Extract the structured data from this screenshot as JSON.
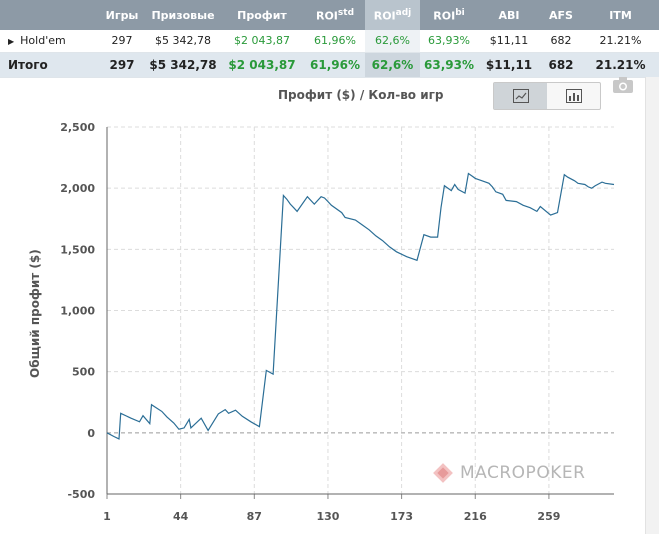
{
  "table": {
    "headers": [
      "",
      "Игры",
      "Призовые",
      "Профит",
      "ROI",
      "ROI",
      "ROI",
      "ABI",
      "AFS",
      "ITM"
    ],
    "header_sups": [
      "",
      "",
      "",
      "",
      "std",
      "adj",
      "bi",
      "",
      "",
      ""
    ],
    "rows": [
      {
        "name": "Hold'em",
        "games": "297",
        "prize": "$5 342,78",
        "profit": "$2 043,87",
        "roi_std": "61,96%",
        "roi_adj": "62,6%",
        "roi_bi": "63,93%",
        "abi": "$11,11",
        "afs": "682",
        "itm": "21.21%"
      }
    ],
    "total": {
      "name": "Итого",
      "games": "297",
      "prize": "$5 342,78",
      "profit": "$2 043,87",
      "roi_std": "61,96%",
      "roi_adj": "62,6%",
      "roi_bi": "63,93%",
      "abi": "$11,11",
      "afs": "682",
      "itm": "21.21%"
    }
  },
  "toggle": {
    "line_icon": "line-chart-icon",
    "bar_icon": "bar-chart-icon",
    "active": "line"
  },
  "camera_icon": "camera-icon",
  "watermark": "MACROPOKER",
  "colors": {
    "header_bg": "#8d9aa6",
    "line": "#2b6e96",
    "profit_green": "#2a9a3a"
  },
  "chart_data": {
    "type": "line",
    "title": "Профит ($) / Кол-во игр",
    "xlabel": "",
    "ylabel": "Общий профит ($)",
    "x_ticks": [
      1,
      44,
      87,
      130,
      173,
      216,
      259
    ],
    "y_ticks": [
      -500,
      0,
      500,
      1000,
      1500,
      2000,
      2500
    ],
    "y_tick_labels": [
      "-500",
      "0",
      "500",
      "1,000",
      "1,500",
      "2,000",
      "2,500"
    ],
    "xlim": [
      1,
      297
    ],
    "ylim": [
      -500,
      2500
    ],
    "grid": true,
    "series": [
      {
        "name": "",
        "x": [
          1,
          5,
          8,
          9,
          15,
          20,
          22,
          26,
          27,
          33,
          36,
          40,
          43,
          46,
          49,
          50,
          56,
          60,
          64,
          66,
          70,
          72,
          76,
          80,
          85,
          90,
          94,
          98,
          104,
          106,
          108,
          110,
          112,
          118,
          122,
          126,
          128,
          130,
          132,
          138,
          140,
          146,
          150,
          154,
          158,
          162,
          166,
          170,
          176,
          182,
          186,
          190,
          194,
          196,
          198,
          202,
          204,
          206,
          210,
          212,
          214,
          216,
          220,
          224,
          226,
          228,
          232,
          234,
          240,
          244,
          248,
          252,
          254,
          260,
          264,
          268,
          270,
          274,
          276,
          280,
          282,
          284,
          286,
          290,
          292,
          297
        ],
        "y": [
          0,
          -30,
          -50,
          160,
          120,
          90,
          140,
          75,
          230,
          175,
          130,
          80,
          30,
          40,
          110,
          40,
          120,
          20,
          110,
          155,
          190,
          160,
          185,
          135,
          90,
          50,
          510,
          480,
          1940,
          1910,
          1870,
          1840,
          1810,
          1930,
          1870,
          1930,
          1920,
          1890,
          1860,
          1800,
          1760,
          1740,
          1700,
          1660,
          1610,
          1570,
          1520,
          1480,
          1440,
          1410,
          1620,
          1600,
          1600,
          1840,
          2020,
          1980,
          2030,
          1990,
          1960,
          2120,
          2100,
          2080,
          2060,
          2040,
          2010,
          1970,
          1950,
          1900,
          1890,
          1860,
          1840,
          1810,
          1850,
          1780,
          1800,
          2110,
          2090,
          2060,
          2040,
          2030,
          2010,
          2000,
          2020,
          2050,
          2040,
          2030
        ]
      }
    ]
  }
}
